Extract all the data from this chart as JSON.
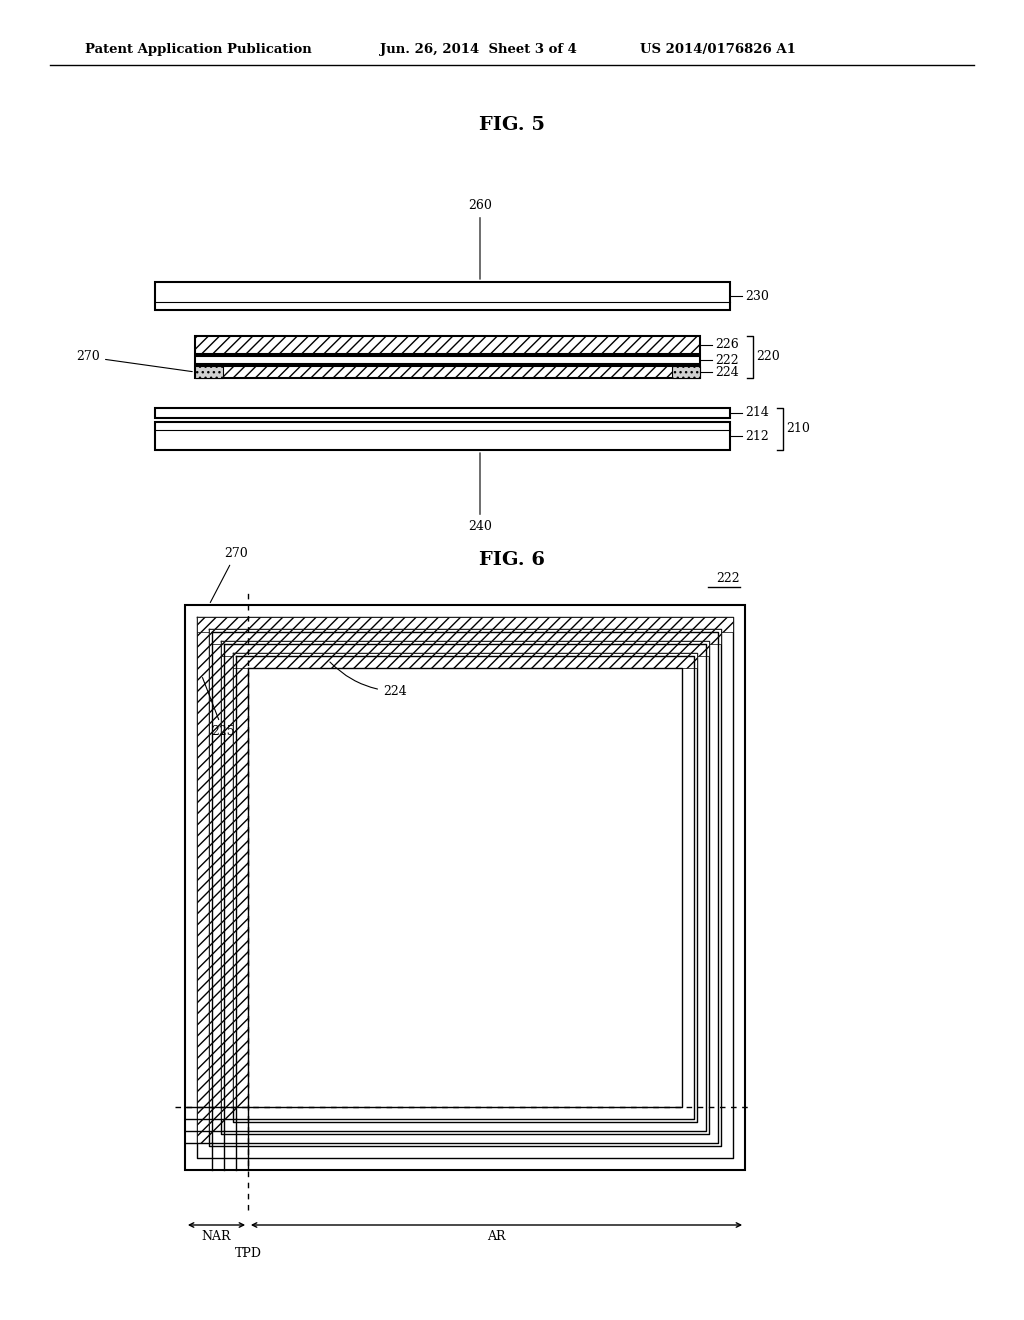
{
  "bg_color": "#ffffff",
  "header_text": "Patent Application Publication",
  "header_date": "Jun. 26, 2014  Sheet 3 of 4",
  "header_patent": "US 2014/0176826 A1",
  "fig5_title": "FIG. 5",
  "fig6_title": "FIG. 6"
}
